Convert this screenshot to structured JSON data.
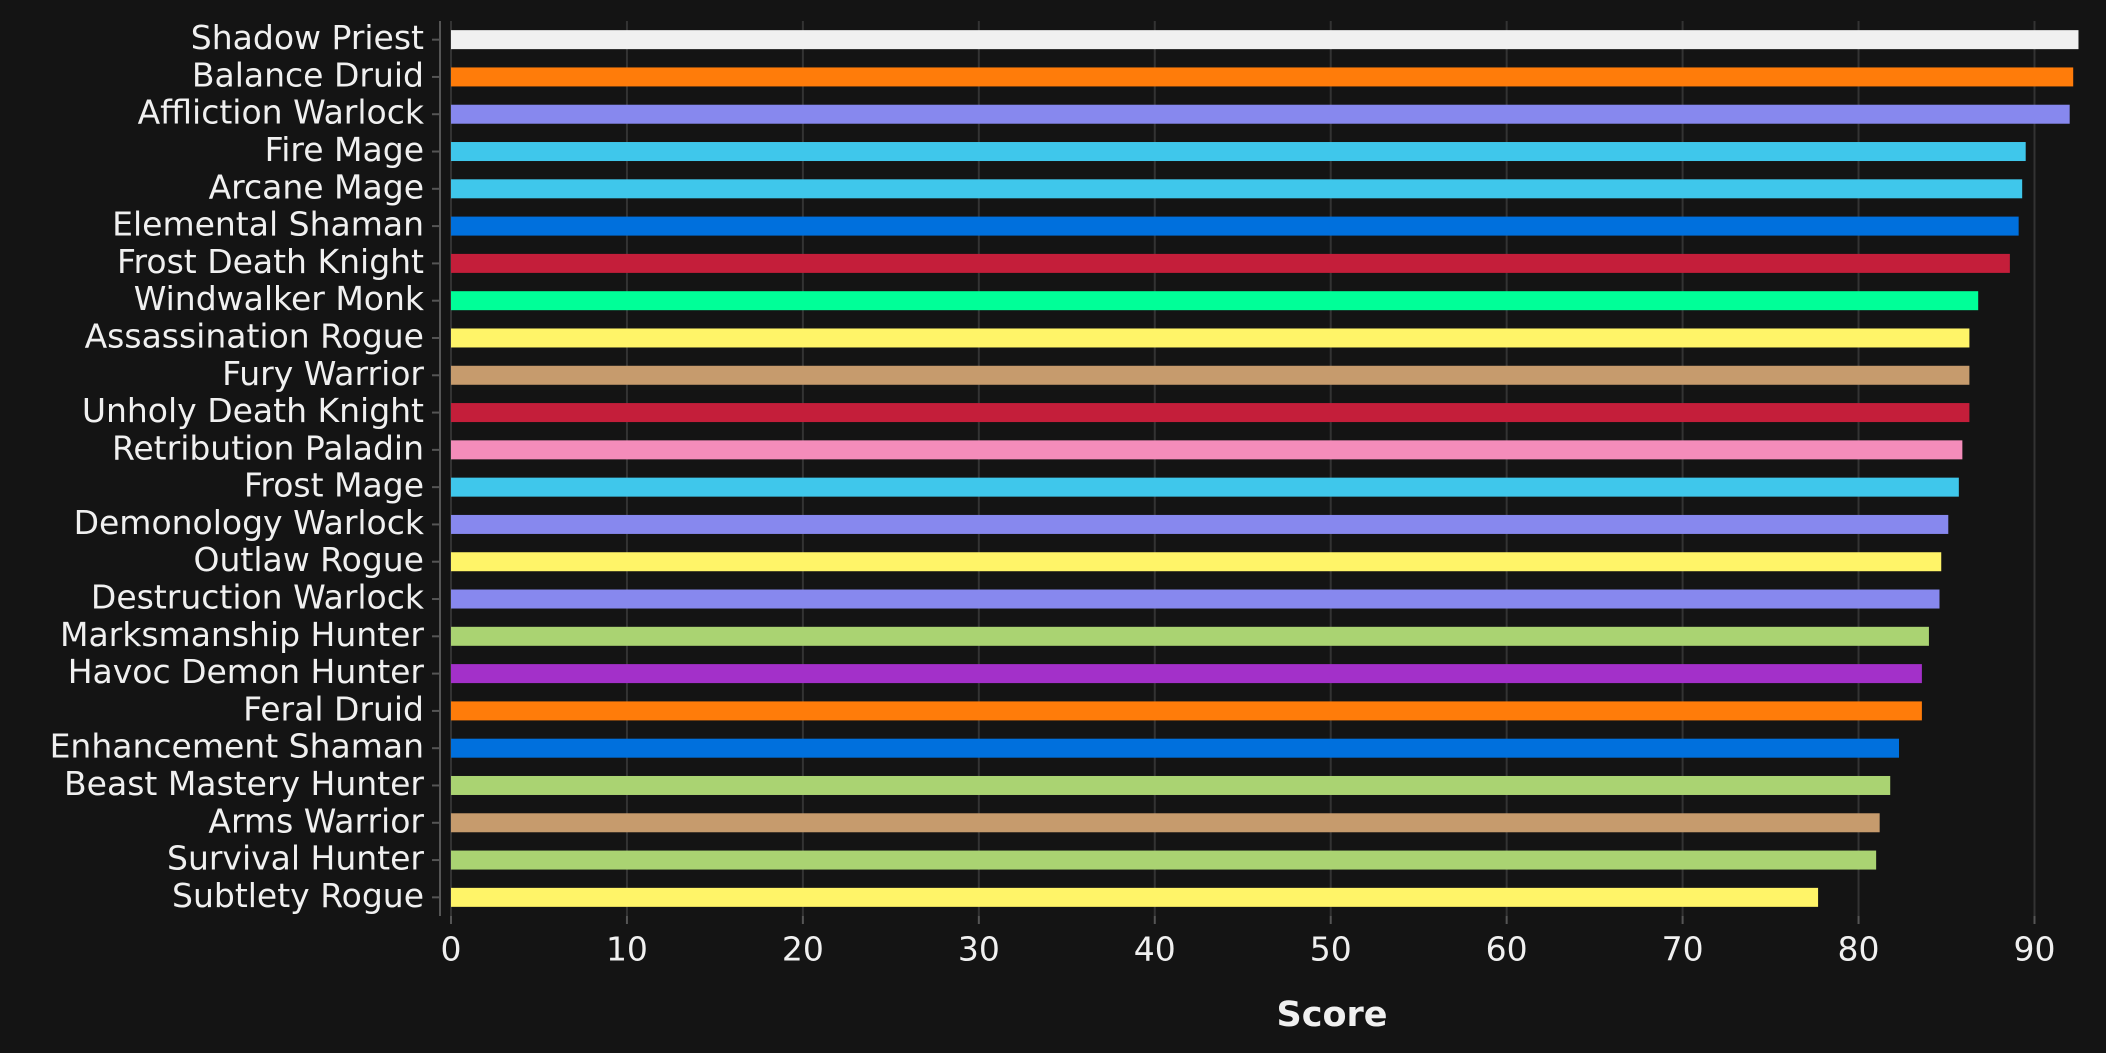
{
  "chart_data": {
    "type": "bar",
    "orientation": "horizontal",
    "x_label": "Score",
    "categories": [
      "Shadow Priest",
      "Balance Druid",
      "Affliction Warlock",
      "Fire Mage",
      "Arcane Mage",
      "Elemental Shaman",
      "Frost Death Knight",
      "Windwalker Monk",
      "Assassination Rogue",
      "Fury Warrior",
      "Unholy Death Knight",
      "Retribution Paladin",
      "Frost Mage",
      "Demonology Warlock",
      "Outlaw Rogue",
      "Destruction Warlock",
      "Marksmanship Hunter",
      "Havoc Demon Hunter",
      "Feral Druid",
      "Enhancement Shaman",
      "Beast Mastery Hunter",
      "Arms Warrior",
      "Survival Hunter",
      "Subtlety Rogue"
    ],
    "values": [
      92.5,
      92.2,
      92.0,
      89.5,
      89.3,
      89.1,
      88.6,
      86.8,
      86.3,
      86.3,
      86.3,
      85.9,
      85.7,
      85.1,
      84.7,
      84.6,
      84.0,
      83.6,
      83.6,
      82.3,
      81.8,
      81.2,
      81.0,
      77.7
    ],
    "colors": [
      "#f0f0f0",
      "#ff7c0a",
      "#8788ee",
      "#3fc7eb",
      "#3fc7eb",
      "#0070dd",
      "#c41e3a",
      "#00ff98",
      "#fff468",
      "#c69b6d",
      "#c41e3a",
      "#f48cba",
      "#3fc7eb",
      "#8788ee",
      "#fff468",
      "#8788ee",
      "#aad372",
      "#a330c9",
      "#ff7c0a",
      "#0070dd",
      "#aad372",
      "#c69b6d",
      "#aad372",
      "#fff468"
    ],
    "xlim": [
      0,
      92.7
    ],
    "xticks": [
      0,
      10,
      20,
      30,
      40,
      50,
      60,
      70,
      80,
      90
    ],
    "grid": true
  }
}
